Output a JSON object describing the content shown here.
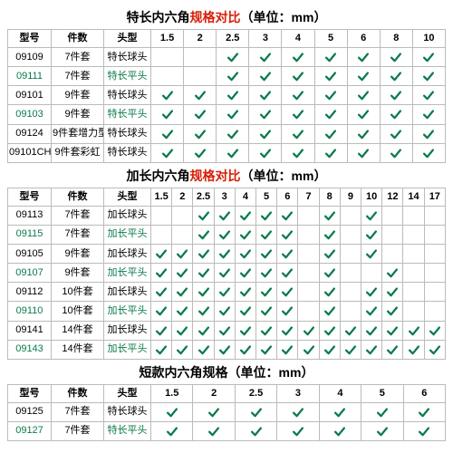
{
  "colors": {
    "accent": "#d81e06",
    "check": "#0a7a4a",
    "border": "#bbb"
  },
  "headers": {
    "model": "型号",
    "pieces": "件数",
    "head": "头型"
  },
  "tables": [
    {
      "title_pre": "特长内六角",
      "title_red": "规格对比",
      "title_post": "（单位：mm）",
      "sizes": [
        "1.5",
        "2",
        "2.5",
        "3",
        "4",
        "5",
        "6",
        "8",
        "10"
      ],
      "rows": [
        {
          "model": "09109",
          "pieces": "7件套",
          "head": "特长球头",
          "green": false,
          "marks": [
            0,
            0,
            1,
            1,
            1,
            1,
            1,
            1,
            1
          ]
        },
        {
          "model": "09111",
          "pieces": "7件套",
          "head": "特长平头",
          "green": true,
          "marks": [
            0,
            0,
            1,
            1,
            1,
            1,
            1,
            1,
            1
          ]
        },
        {
          "model": "09101",
          "pieces": "9件套",
          "head": "特长球头",
          "green": false,
          "marks": [
            1,
            1,
            1,
            1,
            1,
            1,
            1,
            1,
            1
          ]
        },
        {
          "model": "09103",
          "pieces": "9件套",
          "head": "特长平头",
          "green": true,
          "marks": [
            1,
            1,
            1,
            1,
            1,
            1,
            1,
            1,
            1
          ]
        },
        {
          "model": "09124",
          "pieces": "9件套增力型",
          "head": "特长球头",
          "green": false,
          "marks": [
            1,
            1,
            1,
            1,
            1,
            1,
            1,
            1,
            1
          ]
        },
        {
          "model": "09101CH",
          "pieces": "9件套彩虹",
          "head": "特长球头",
          "green": false,
          "marks": [
            1,
            1,
            1,
            1,
            1,
            1,
            1,
            1,
            1
          ]
        }
      ]
    },
    {
      "title_pre": "加长内六角",
      "title_red": "规格对比",
      "title_post": "（单位：mm）",
      "sizes": [
        "1.5",
        "2",
        "2.5",
        "3",
        "4",
        "5",
        "6",
        "7",
        "8",
        "9",
        "10",
        "12",
        "14",
        "17"
      ],
      "rows": [
        {
          "model": "09113",
          "pieces": "7件套",
          "head": "加长球头",
          "green": false,
          "marks": [
            0,
            0,
            1,
            1,
            1,
            1,
            1,
            0,
            1,
            0,
            1,
            0,
            0,
            0
          ]
        },
        {
          "model": "09115",
          "pieces": "7件套",
          "head": "加长平头",
          "green": true,
          "marks": [
            0,
            0,
            1,
            1,
            1,
            1,
            1,
            0,
            1,
            0,
            1,
            0,
            0,
            0
          ]
        },
        {
          "model": "09105",
          "pieces": "9件套",
          "head": "加长球头",
          "green": false,
          "marks": [
            1,
            1,
            1,
            1,
            1,
            1,
            1,
            0,
            1,
            0,
            1,
            0,
            0,
            0
          ]
        },
        {
          "model": "09107",
          "pieces": "9件套",
          "head": "加长平头",
          "green": true,
          "marks": [
            1,
            1,
            1,
            1,
            1,
            1,
            1,
            0,
            1,
            0,
            0,
            1,
            0,
            0
          ]
        },
        {
          "model": "09112",
          "pieces": "10件套",
          "head": "加长球头",
          "green": false,
          "marks": [
            1,
            1,
            1,
            1,
            1,
            1,
            1,
            0,
            1,
            0,
            1,
            1,
            0,
            0
          ]
        },
        {
          "model": "09110",
          "pieces": "10件套",
          "head": "加长平头",
          "green": true,
          "marks": [
            1,
            1,
            1,
            1,
            1,
            1,
            1,
            0,
            1,
            0,
            1,
            1,
            0,
            0
          ]
        },
        {
          "model": "09141",
          "pieces": "14件套",
          "head": "加长球头",
          "green": false,
          "marks": [
            1,
            1,
            1,
            1,
            1,
            1,
            1,
            1,
            1,
            1,
            1,
            1,
            1,
            1
          ]
        },
        {
          "model": "09143",
          "pieces": "14件套",
          "head": "加长平头",
          "green": true,
          "marks": [
            1,
            1,
            1,
            1,
            1,
            1,
            1,
            1,
            1,
            1,
            1,
            1,
            1,
            1
          ]
        }
      ]
    },
    {
      "title_pre": "短款内六角规格（单位：mm）",
      "title_red": "",
      "title_post": "",
      "sizes": [
        "1.5",
        "2",
        "2.5",
        "3",
        "4",
        "5",
        "6"
      ],
      "rows": [
        {
          "model": "09125",
          "pieces": "7件套",
          "head": "特长球头",
          "green": false,
          "marks": [
            1,
            1,
            1,
            1,
            1,
            1,
            1
          ]
        },
        {
          "model": "09127",
          "pieces": "7件套",
          "head": "特长平头",
          "green": true,
          "marks": [
            1,
            1,
            1,
            1,
            1,
            1,
            1
          ]
        }
      ]
    }
  ]
}
